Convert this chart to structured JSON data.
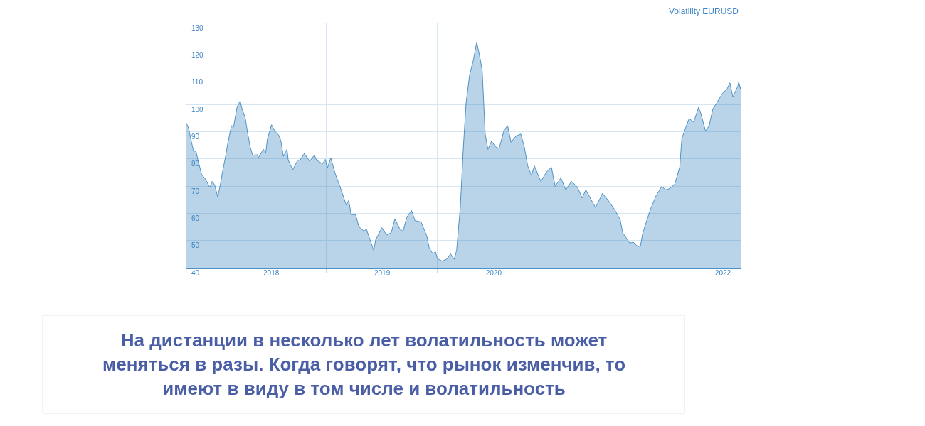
{
  "chart_data": {
    "type": "area",
    "title": "Volatility EURUSD",
    "x": [
      "2017-09-27",
      "2017-10-04",
      "2017-10-12",
      "2017-10-20",
      "2017-10-29",
      "2017-11-04",
      "2017-11-16",
      "2017-11-28",
      "2017-12-13",
      "2017-12-21",
      "2017-12-29",
      "2018-01-08",
      "2018-01-17",
      "2018-01-25",
      "2018-02-02",
      "2018-02-10",
      "2018-02-22",
      "2018-03-01",
      "2018-03-13",
      "2018-03-23",
      "2018-03-29",
      "2018-04-08",
      "2018-04-17",
      "2018-04-25",
      "2018-05-03",
      "2018-05-18",
      "2018-05-22",
      "2018-06-07",
      "2018-06-15",
      "2018-06-20",
      "2018-07-04",
      "2018-07-16",
      "2018-07-28",
      "2018-08-04",
      "2018-08-12",
      "2018-08-24",
      "2018-08-28",
      "2018-09-12",
      "2018-09-28",
      "2018-10-06",
      "2018-10-20",
      "2018-11-06",
      "2018-11-22",
      "2018-11-29",
      "2018-12-19",
      "2018-12-28",
      "2019-01-04",
      "2019-01-15",
      "2019-01-29",
      "2019-02-14",
      "2019-03-07",
      "2019-03-15",
      "2019-03-23",
      "2019-04-07",
      "2019-04-17",
      "2019-05-05",
      "2019-05-12",
      "2019-05-24",
      "2019-06-05",
      "2019-06-12",
      "2019-07-02",
      "2019-07-18",
      "2019-08-02",
      "2019-08-14",
      "2019-08-30",
      "2019-09-10",
      "2019-09-22",
      "2019-10-08",
      "2019-10-19",
      "2019-11-08",
      "2019-11-27",
      "2019-12-05",
      "2019-12-17",
      "2019-12-25",
      "2020-01-01",
      "2020-01-17",
      "2020-02-02",
      "2020-02-13",
      "2020-02-25",
      "2020-03-04",
      "2020-03-16",
      "2020-03-26",
      "2020-04-04",
      "2020-04-16",
      "2020-04-28",
      "2020-05-09",
      "2020-05-17",
      "2020-05-27",
      "2020-06-06",
      "2020-06-15",
      "2020-06-27",
      "2020-07-11",
      "2020-07-22",
      "2020-08-07",
      "2020-08-19",
      "2020-08-30",
      "2020-09-15",
      "2020-10-01",
      "2020-10-12",
      "2020-10-24",
      "2020-11-05",
      "2020-11-15",
      "2020-12-06",
      "2020-12-25",
      "2021-01-10",
      "2021-01-22",
      "2021-02-10",
      "2021-02-26",
      "2021-03-17",
      "2021-04-06",
      "2021-04-21",
      "2021-05-03",
      "2021-06-04",
      "2021-06-27",
      "2021-07-16",
      "2021-08-09",
      "2021-08-24",
      "2021-09-01",
      "2021-09-25",
      "2021-10-06",
      "2021-10-22",
      "2021-10-30",
      "2021-11-06",
      "2021-11-22",
      "2021-12-04",
      "2021-12-20",
      "2022-01-08",
      "2022-01-20",
      "2022-02-04",
      "2022-02-20",
      "2022-03-08",
      "2022-03-15",
      "2022-03-27",
      "2022-04-08",
      "2022-04-23",
      "2022-05-09",
      "2022-05-17",
      "2022-06-01",
      "2022-06-13",
      "2022-06-25",
      "2022-07-10",
      "2022-07-26",
      "2022-08-11",
      "2022-08-20",
      "2022-08-30",
      "2022-09-15",
      "2022-09-18",
      "2022-09-24",
      "2022-09-27"
    ],
    "series": [
      {
        "color": "#2b7bba",
        "values": [
          93.1,
          91.3,
          87,
          83,
          82.6,
          79.5,
          74.3,
          72.6,
          69.5,
          71.7,
          70.4,
          66,
          70.8,
          76,
          80.4,
          85.6,
          92.2,
          91.7,
          99.2,
          101.2,
          98.3,
          95.3,
          89.1,
          84.3,
          81.3,
          81.5,
          80.4,
          83.5,
          82.2,
          87,
          92.5,
          90,
          88.7,
          86.5,
          80.9,
          83.5,
          79.5,
          76,
          79.5,
          79.5,
          82,
          79.1,
          81.3,
          79.5,
          78.2,
          79.8,
          76.7,
          80.4,
          74.7,
          69.9,
          63,
          64.7,
          59.5,
          59.5,
          55.1,
          53.4,
          54.2,
          50.3,
          46.4,
          50.3,
          54.7,
          52,
          52.9,
          57.9,
          54.2,
          53.4,
          58.6,
          61,
          57.3,
          56.8,
          51.6,
          47.2,
          45.1,
          45.9,
          43.3,
          42.4,
          43.3,
          45.1,
          43.1,
          46.4,
          62.1,
          83.9,
          100.5,
          111,
          116.2,
          122.8,
          118.8,
          112.7,
          89.1,
          83.5,
          86.5,
          84.3,
          83.9,
          90.5,
          92.2,
          86.1,
          88.3,
          89.1,
          84.8,
          77.4,
          73.9,
          77.4,
          71.7,
          75.2,
          76.9,
          69.9,
          73,
          68.6,
          71.7,
          69.5,
          65.6,
          68.6,
          62.1,
          67.3,
          64.7,
          60.8,
          57.7,
          52.9,
          49,
          49.4,
          47.7,
          48.1,
          52.5,
          58.2,
          62.1,
          66.4,
          69.9,
          68.6,
          69.1,
          70.8,
          76.9,
          87.4,
          91.3,
          94.8,
          93.5,
          98.9,
          96.5,
          90.2,
          92.2,
          98.3,
          100.9,
          104,
          105.7,
          107.9,
          102.7,
          106.6,
          108.2,
          105.7,
          107.9
        ]
      }
    ],
    "xlim": [
      "2017-09-27",
      "2022-09-27"
    ],
    "xticks": [
      {
        "value": "2018-01-01",
        "label": null
      },
      {
        "value": "2019-01-01",
        "label": null
      },
      {
        "value": "2020-01-01",
        "label": null
      },
      {
        "value": "2022-01-01",
        "label": null
      },
      {
        "value": "2018-07-03",
        "label": "2018"
      },
      {
        "value": "2019-07-03",
        "label": "2019"
      },
      {
        "value": "2020-07-04",
        "label": "2020"
      },
      {
        "value": "2022-07-28",
        "label": "2022"
      }
    ],
    "ylim": [
      40,
      130
    ],
    "yticks": [
      40,
      50,
      60,
      70,
      80,
      90,
      100,
      110,
      120,
      130
    ],
    "grid": true,
    "marker": "none",
    "line_style": "solid",
    "annotations": [
      "На дистанции в несколько лет волатильность может\nменяться в разы. Когда говорят, что рынок изменчив, то\nимеют в виду в том числе и волатильность"
    ]
  }
}
